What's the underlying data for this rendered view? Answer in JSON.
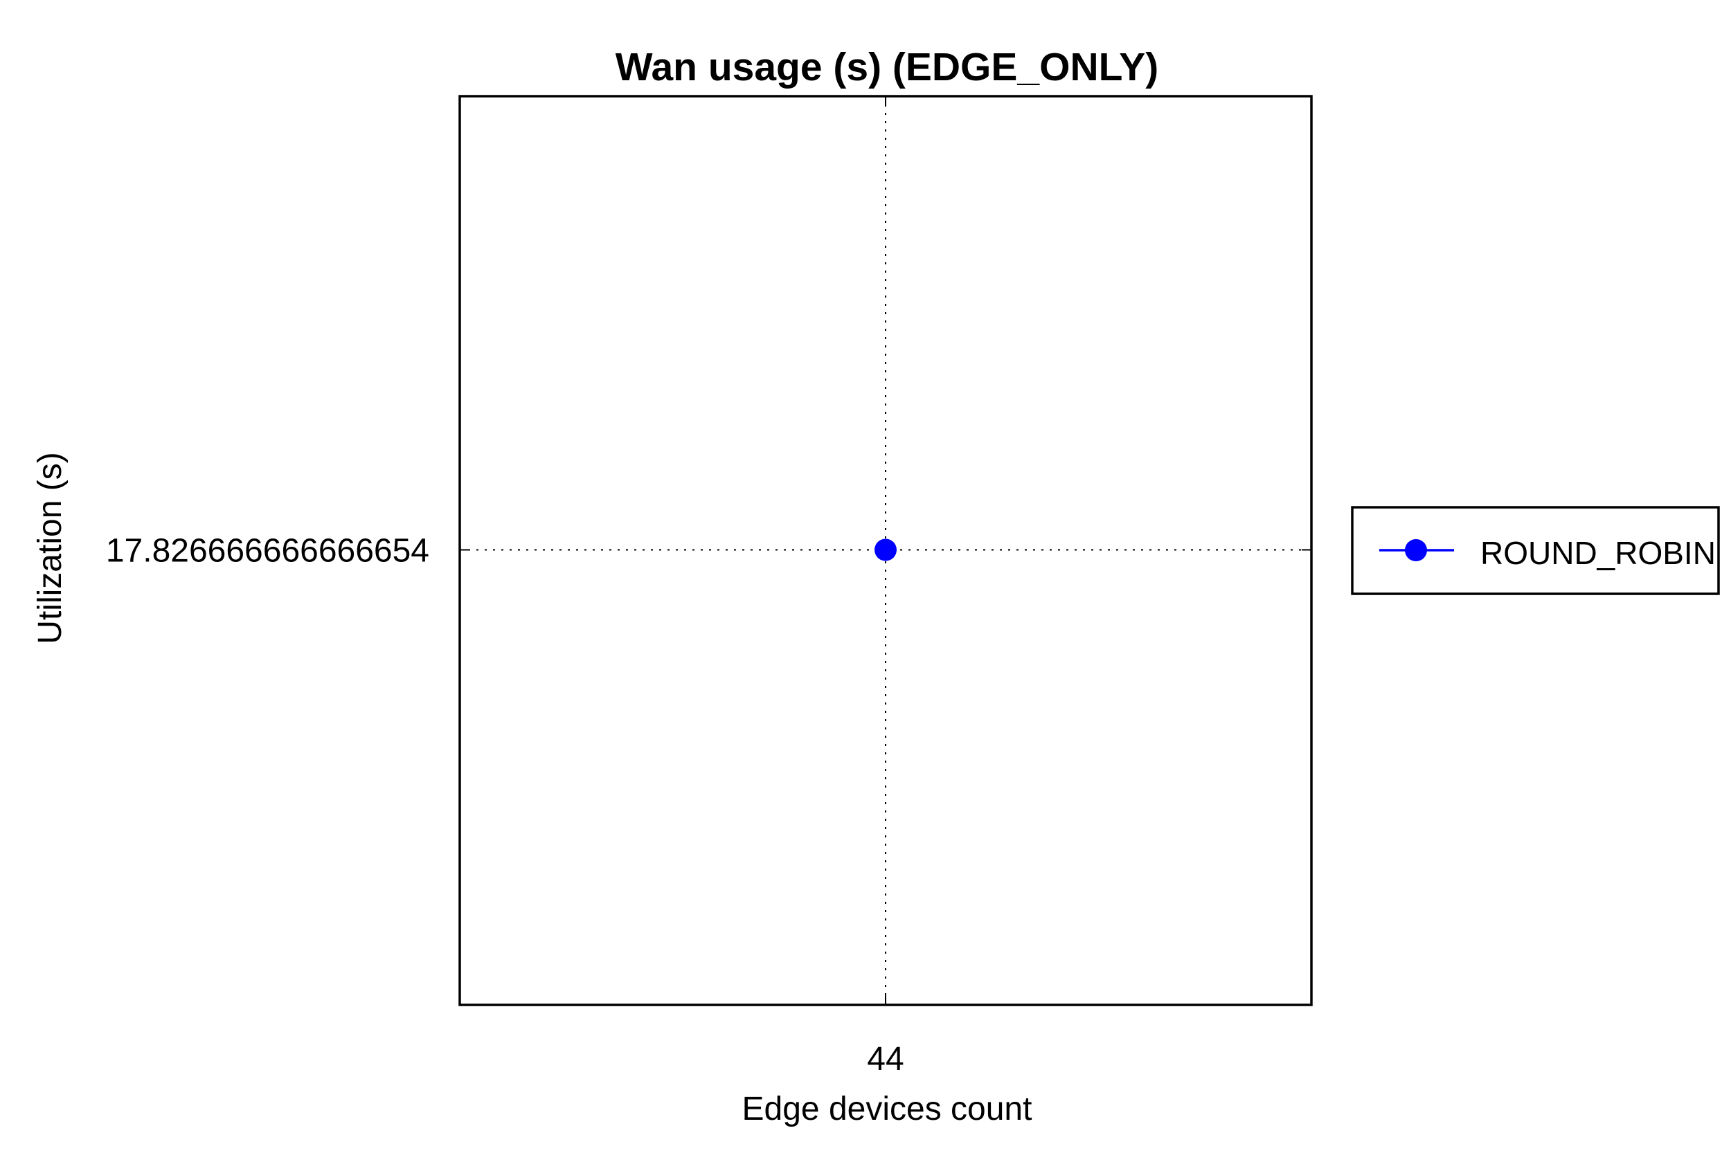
{
  "chart_data": {
    "type": "line",
    "title": "Wan usage (s) (EDGE_ONLY)",
    "xlabel": "Edge devices count",
    "ylabel": "Utilization (s)",
    "x": [
      44
    ],
    "x_tick_labels": [
      "44"
    ],
    "y_tick_labels": [
      "17.826666666666654"
    ],
    "series": [
      {
        "name": "ROUND_ROBIN",
        "color": "#0000ff",
        "marker": "circle",
        "points": [
          {
            "x": 44,
            "y": 17.826666666666654
          }
        ]
      }
    ],
    "grid": true,
    "legend": "right"
  }
}
